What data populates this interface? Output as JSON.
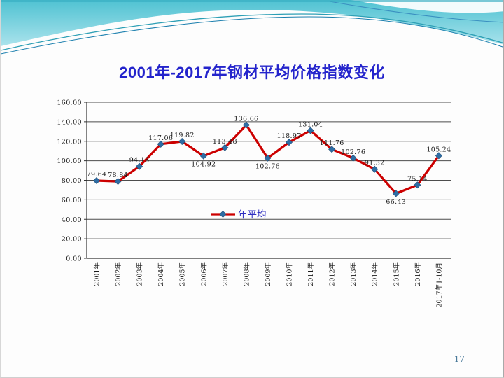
{
  "slide": {
    "title": "2001年-2017年钢材平均价格指数变化",
    "title_color": "#2424CC",
    "page_number": "17",
    "decoration_teal_top": "#4FC2D2",
    "decoration_teal_bottom": "#ABE3EC"
  },
  "chart_data": {
    "type": "line",
    "title": "2001年-2017年钢材平均价格指数变化",
    "categories": [
      "2001年",
      "2002年",
      "2003年",
      "2004年",
      "2005年",
      "2006年",
      "2007年",
      "2008年",
      "2009年",
      "2010年",
      "2011年",
      "2012年",
      "2013年",
      "2014年",
      "2015年",
      "2016年",
      "2017年1-10月"
    ],
    "series": [
      {
        "name": "年平均",
        "values": [
          79.64,
          78.84,
          94.18,
          117.06,
          119.82,
          104.92,
          113.48,
          136.66,
          102.76,
          118.97,
          131.04,
          111.76,
          102.76,
          91.32,
          66.43,
          75.14,
          105.24
        ],
        "line_color": "#CC0000",
        "marker": "diamond",
        "marker_color": "#2E6DA4",
        "marker_edge_color": "#1F4E79"
      }
    ],
    "data_label_positions": [
      "above",
      "above",
      "above",
      "above",
      "above",
      "below",
      "above",
      "above",
      "below",
      "above",
      "above",
      "above",
      "above",
      "above",
      "below",
      "above",
      "above"
    ],
    "data_label_color": "#1a1a1a",
    "ylim": [
      0,
      160
    ],
    "ytick_interval": 20,
    "ytick_labels": [
      "0.00",
      "20.00",
      "40.00",
      "60.00",
      "80.00",
      "100.00",
      "120.00",
      "140.00",
      "160.00"
    ],
    "grid": true,
    "grid_color": "#4d4d4d",
    "axis_color": "#333333",
    "legend": {
      "position": "inside-bottom-center",
      "text_color": "#2E2EC0"
    }
  }
}
